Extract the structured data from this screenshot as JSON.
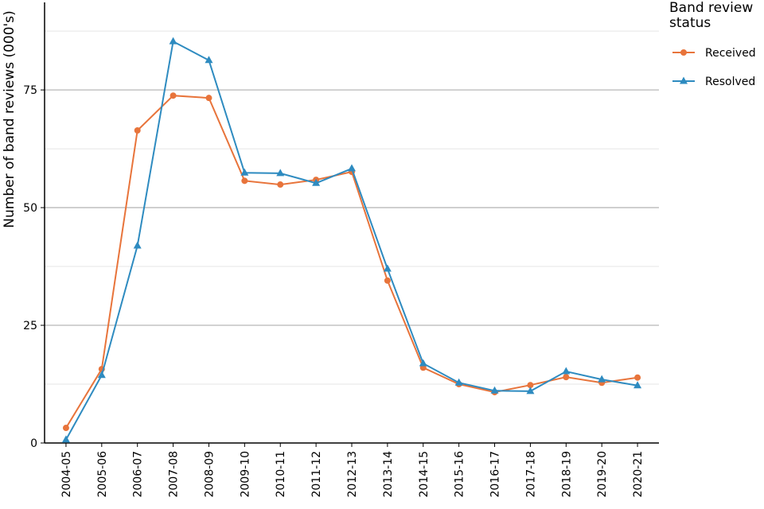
{
  "chart_data": {
    "type": "line",
    "y_label": "Number of band reviews (000's)",
    "legend_title": "Band review status",
    "legend_position": "right",
    "categories": [
      "2004-05",
      "2005-06",
      "2006-07",
      "2007-08",
      "2008-09",
      "2009-10",
      "2010-11",
      "2011-12",
      "2012-13",
      "2013-14",
      "2014-15",
      "2015-16",
      "2016-17",
      "2017-18",
      "2018-19",
      "2019-20",
      "2020-21"
    ],
    "series": [
      {
        "name": "Received",
        "color": "#e8743b",
        "marker": "circle",
        "values": [
          3.2,
          15.7,
          66.4,
          73.8,
          73.3,
          55.7,
          54.9,
          55.9,
          57.6,
          34.5,
          16.0,
          12.5,
          10.8,
          12.3,
          14.0,
          12.8,
          13.9
        ]
      },
      {
        "name": "Resolved",
        "color": "#2e8bc0",
        "marker": "triangle",
        "values": [
          0.7,
          14.4,
          41.9,
          85.3,
          81.3,
          57.4,
          57.3,
          55.2,
          58.3,
          37.0,
          16.9,
          12.8,
          11.1,
          11.0,
          15.2,
          13.5,
          12.2
        ]
      }
    ],
    "ylim": [
      0,
      93.6
    ],
    "yticks": [
      0,
      25,
      50,
      75
    ],
    "minor_yticks": [
      12.5,
      37.5,
      62.5,
      87.5
    ],
    "grid": true
  }
}
